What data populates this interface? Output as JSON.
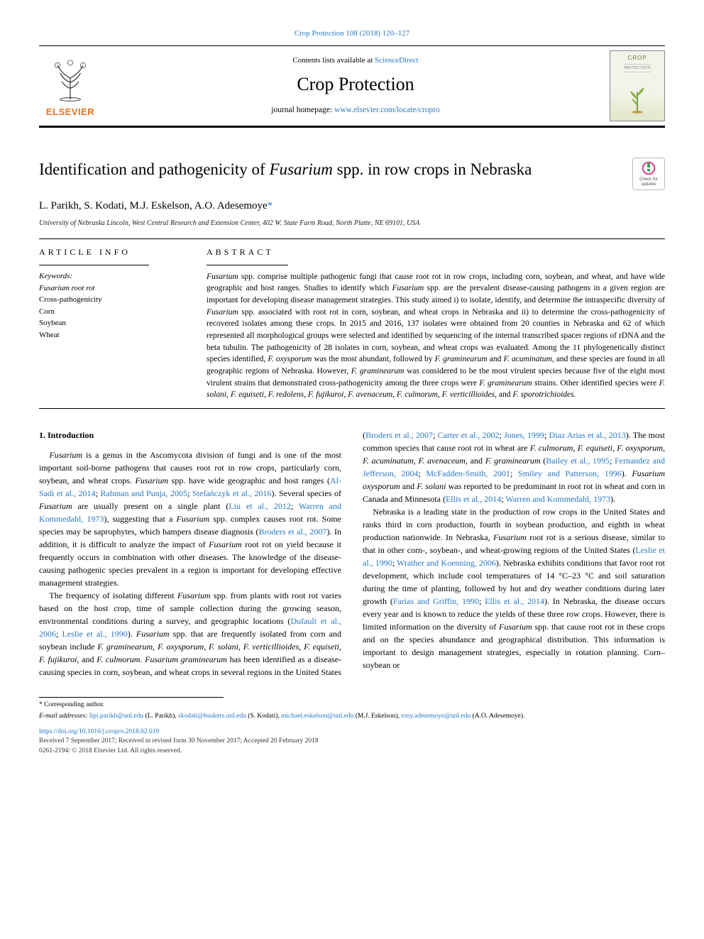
{
  "citation": "Crop Protection 108 (2018) 120–127",
  "header": {
    "contents_prefix": "Contents lists available at ",
    "contents_link": "ScienceDirect",
    "journal": "Crop Protection",
    "homepage_prefix": "journal homepage: ",
    "homepage_url": "www.elsevier.com/locate/cropro",
    "publisher": "ELSEVIER",
    "cover_title": "CROP",
    "cover_sub": "PROTECTION"
  },
  "article": {
    "title_pre": "Identification and pathogenicity of ",
    "title_species": "Fusarium",
    "title_post": " spp. in row crops in Nebraska",
    "update_badge": "Check for updates",
    "authors_html": "L. Parikh, S. Kodati, M.J. Eskelson, A.O. Adesemoye",
    "corr_mark": "*",
    "affiliation": "University of Nebraska Lincoln, West Central Research and Extension Center, 402 W. State Farm Road, North Platte, NE 69101, USA"
  },
  "article_info": {
    "heading": "ARTICLE INFO",
    "kw_label": "Keywords:",
    "keywords": [
      "Fusarium root rot",
      "Cross-pathogenicity",
      "Corn",
      "Soybean",
      "Wheat"
    ]
  },
  "abstract": {
    "heading": "ABSTRACT",
    "text_parts": [
      {
        "i": true,
        "t": "Fusarium"
      },
      {
        "i": false,
        "t": " spp. comprise multiple pathogenic fungi that cause root rot in row crops, including corn, soybean, and wheat, and have wide geographic and host ranges. Studies to identify which "
      },
      {
        "i": true,
        "t": "Fusarium"
      },
      {
        "i": false,
        "t": " spp. are the prevalent disease-causing pathogens in a given region are important for developing disease management strategies. This study aimed i) to isolate, identify, and determine the intraspecific diversity of "
      },
      {
        "i": true,
        "t": "Fusarium"
      },
      {
        "i": false,
        "t": " spp. associated with root rot in corn, soybean, and wheat crops in Nebraska and ii) to determine the cross-pathogenicity of recovered isolates among these crops. In 2015 and 2016, 137 isolates were obtained from 20 counties in Nebraska and 62 of which represented all morphological groups were selected and identified by sequencing of the internal transcribed spacer regions of rDNA and the beta tubulin. The pathogenicity of 28 isolates in corn, soybean, and wheat crops was evaluated. Among the 11 phylogenetically distinct species identified, "
      },
      {
        "i": true,
        "t": "F. oxysporum"
      },
      {
        "i": false,
        "t": " was the most abundant, followed by "
      },
      {
        "i": true,
        "t": "F. graminearum"
      },
      {
        "i": false,
        "t": " and "
      },
      {
        "i": true,
        "t": "F. acuminatum"
      },
      {
        "i": false,
        "t": ", and these species are found in all geographic regions of Nebraska. However, "
      },
      {
        "i": true,
        "t": "F. graminearum"
      },
      {
        "i": false,
        "t": " was considered to be the most virulent species because five of the eight most virulent strains that demonstrated cross-pathogenicity among the three crops were "
      },
      {
        "i": true,
        "t": "F. graminearum"
      },
      {
        "i": false,
        "t": " strains. Other identified species were "
      },
      {
        "i": true,
        "t": "F. solani"
      },
      {
        "i": false,
        "t": ", "
      },
      {
        "i": true,
        "t": "F. equiseti"
      },
      {
        "i": false,
        "t": ", "
      },
      {
        "i": true,
        "t": "F. redolens"
      },
      {
        "i": false,
        "t": ", "
      },
      {
        "i": true,
        "t": "F. fujikuroi"
      },
      {
        "i": false,
        "t": ", "
      },
      {
        "i": true,
        "t": "F. avenaceum"
      },
      {
        "i": false,
        "t": ", "
      },
      {
        "i": true,
        "t": "F. culmorum"
      },
      {
        "i": false,
        "t": ", "
      },
      {
        "i": true,
        "t": "F. verticillioides"
      },
      {
        "i": false,
        "t": ", and "
      },
      {
        "i": true,
        "t": "F. sporotrichioides"
      },
      {
        "i": false,
        "t": "."
      }
    ]
  },
  "intro": {
    "heading": "1. Introduction",
    "p1": [
      {
        "i": true,
        "t": "Fusarium"
      },
      {
        "i": false,
        "t": " is a genus in the Ascomycota division of fungi and is one of the most important soil-borne pathogens that causes root rot in row crops, particularly corn, soybean, and wheat crops. "
      },
      {
        "i": true,
        "t": "Fusarium"
      },
      {
        "i": false,
        "t": " spp. have wide geographic and host ranges ("
      },
      {
        "a": true,
        "t": "Al-Sadi et al., 2014"
      },
      {
        "i": false,
        "t": "; "
      },
      {
        "a": true,
        "t": "Rahman and Punja, 2005"
      },
      {
        "i": false,
        "t": "; "
      },
      {
        "a": true,
        "t": "Stefańczyk et al., 2016"
      },
      {
        "i": false,
        "t": "). Several species of "
      },
      {
        "i": true,
        "t": "Fusarium"
      },
      {
        "i": false,
        "t": " are usually present on a single plant ("
      },
      {
        "a": true,
        "t": "Liu et al., 2012"
      },
      {
        "i": false,
        "t": "; "
      },
      {
        "a": true,
        "t": "Warren and Kommedahl, 1973"
      },
      {
        "i": false,
        "t": "), suggesting that a "
      },
      {
        "i": true,
        "t": "Fusarium"
      },
      {
        "i": false,
        "t": " spp. complex causes root rot. Some species may be saprophytes, which hampers disease diagnosis ("
      },
      {
        "a": true,
        "t": "Broders et al., 2007"
      },
      {
        "i": false,
        "t": "). In addition, it is difficult to analyze the impact of "
      },
      {
        "i": true,
        "t": "Fusarium"
      },
      {
        "i": false,
        "t": " root rot on yield because it frequently occurs in combination with other diseases. The knowledge of the disease-causing pathogenic species prevalent in a region is important for developing effective management strategies."
      }
    ],
    "p2": [
      {
        "i": false,
        "t": "The frequency of isolating different "
      },
      {
        "i": true,
        "t": "Fusarium"
      },
      {
        "i": false,
        "t": " spp. from plants with root rot varies based on the host crop, time of sample collection during the growing season, environmental conditions during a survey, and geographic locations ("
      },
      {
        "a": true,
        "t": "Dufault et al., 2006"
      },
      {
        "i": false,
        "t": "; "
      },
      {
        "a": true,
        "t": "Leslie et al., 1990"
      },
      {
        "i": false,
        "t": "). "
      },
      {
        "i": true,
        "t": "Fusarium"
      },
      {
        "i": false,
        "t": " spp. that are frequently isolated from corn and soybean include "
      },
      {
        "i": true,
        "t": "F. graminearum, F. oxysporum, F. solani, F. verticillioides, F. equiseti, F. fujikuroi"
      },
      {
        "i": false,
        "t": ", and "
      },
      {
        "i": true,
        "t": "F. culmorum. Fusarium graminearum"
      },
      {
        "i": false,
        "t": " has been identified as a disease-causing species in corn, soybean, and wheat crops in several regions in the United States ("
      },
      {
        "a": true,
        "t": "Broders et al., 2007"
      },
      {
        "i": false,
        "t": "; "
      },
      {
        "a": true,
        "t": "Carter et al., 2002"
      },
      {
        "i": false,
        "t": "; "
      },
      {
        "a": true,
        "t": "Jones, 1999"
      },
      {
        "i": false,
        "t": "; "
      },
      {
        "a": true,
        "t": "Diaz Arias et al., 2013"
      },
      {
        "i": false,
        "t": "). The most common species that cause root rot in wheat are "
      },
      {
        "i": true,
        "t": "F. culmorum, F. equiseti, F. oxysporum, F. acuminatum, F. avenaceum"
      },
      {
        "i": false,
        "t": ", and "
      },
      {
        "i": true,
        "t": "F. graminearum"
      },
      {
        "i": false,
        "t": " ("
      },
      {
        "a": true,
        "t": "Bailey et al., 1995"
      },
      {
        "i": false,
        "t": "; "
      },
      {
        "a": true,
        "t": "Fernandez and Jefferson, 2004"
      },
      {
        "i": false,
        "t": "; "
      },
      {
        "a": true,
        "t": "McFadden-Smith, 2001"
      },
      {
        "i": false,
        "t": "; "
      },
      {
        "a": true,
        "t": "Smiley and Patterson, 1996"
      },
      {
        "i": false,
        "t": "). "
      },
      {
        "i": true,
        "t": "Fusarium oxysporum"
      },
      {
        "i": false,
        "t": " and "
      },
      {
        "i": true,
        "t": "F. solani"
      },
      {
        "i": false,
        "t": " was reported to be predominant in root rot in wheat and corn in Canada and Minnesota ("
      },
      {
        "a": true,
        "t": "Ellis et al., 2014"
      },
      {
        "i": false,
        "t": "; "
      },
      {
        "a": true,
        "t": "Warren and Kommedahl, 1973"
      },
      {
        "i": false,
        "t": ")."
      }
    ],
    "p3": [
      {
        "i": false,
        "t": "Nebraska is a leading state in the production of row crops in the United States and ranks third in corn production, fourth in soybean production, and eighth in wheat production nationwide. In Nebraska, "
      },
      {
        "i": true,
        "t": "Fusarium"
      },
      {
        "i": false,
        "t": " root rot is a serious disease, similar to that in other corn-, soybean-, and wheat-growing regions of the United States ("
      },
      {
        "a": true,
        "t": "Leslie et al., 1990"
      },
      {
        "i": false,
        "t": "; "
      },
      {
        "a": true,
        "t": "Wrather and Koenning, 2006"
      },
      {
        "i": false,
        "t": "). Nebraska exhibits conditions that favor root rot development, which include cool temperatures of 14 °C–23 °C and soil saturation during the time of planting, followed by hot and dry weather conditions during later growth ("
      },
      {
        "a": true,
        "t": "Farias and Griffin, 1990"
      },
      {
        "i": false,
        "t": "; "
      },
      {
        "a": true,
        "t": "Ellis et al., 2014"
      },
      {
        "i": false,
        "t": "). In Nebraska, the disease occurs every year and is known to reduce the yields of these three row crops. However, there is limited information on the diversity of "
      },
      {
        "i": true,
        "t": "Fusarium"
      },
      {
        "i": false,
        "t": " spp. that cause root rot in these crops and on the species abundance and geographical distribution. This information is important to design management strategies, especially in rotation planning. Corn–soybean or"
      }
    ]
  },
  "footnotes": {
    "corr": "* Corresponding author.",
    "email_label": "E-mail addresses:",
    "emails": [
      {
        "addr": "lipi.parikh@unl.edu",
        "name": "(L. Parikh)"
      },
      {
        "addr": "skodati@huskers.unl.edu",
        "name": "(S. Kodati)"
      },
      {
        "addr": "michael.eskelson@unl.edu",
        "name": "(M.J. Eskelson)"
      },
      {
        "addr": "tony.adesemoye@unl.edu",
        "name": "(A.O. Adesemoye)"
      }
    ],
    "doi": "https://doi.org/10.1016/j.cropro.2018.02.019",
    "received": "Received 7 September 2017; Received in revised form 30 November 2017; Accepted 20 February 2018",
    "copyright": "0261-2194/ © 2018 Elsevier Ltd. All rights reserved."
  },
  "colors": {
    "link": "#2878c4",
    "elsevier": "#e9711c",
    "badge_ring": "#d94f8f",
    "badge_mark": "#2aa04c"
  }
}
